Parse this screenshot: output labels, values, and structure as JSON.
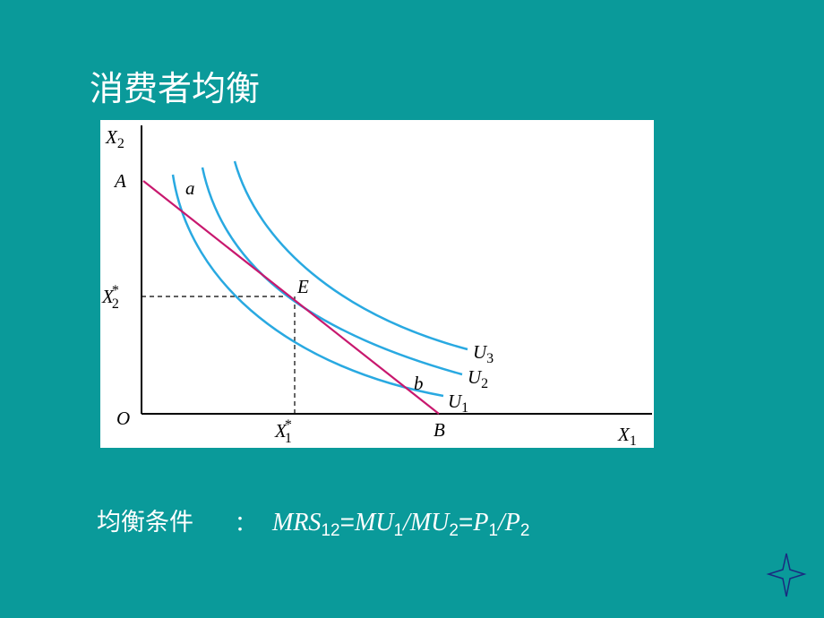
{
  "title": "消费者均衡",
  "diagram": {
    "y_axis_label": {
      "main": "X",
      "sub": "2"
    },
    "x_axis_label": {
      "main": "X",
      "sub": "1"
    },
    "origin": "O",
    "intercept_y": "A",
    "intercept_x": "B",
    "equilibrium": "E",
    "point_a": "a",
    "point_b": "b",
    "x2_star": {
      "main": "X",
      "sub": "2",
      "sup": "*"
    },
    "x1_star": {
      "main": "X",
      "sub": "1",
      "sup": "*"
    },
    "curves": [
      {
        "main": "U",
        "sub": "1"
      },
      {
        "main": "U",
        "sub": "2"
      },
      {
        "main": "U",
        "sub": "3"
      }
    ]
  },
  "condition": {
    "label": "均衡条件",
    "colon": "：",
    "formula": [
      "MRS",
      "12",
      "=",
      "MU",
      "1",
      "/",
      "MU",
      "2",
      "=",
      "P",
      "1",
      "/",
      "P",
      "2"
    ]
  }
}
